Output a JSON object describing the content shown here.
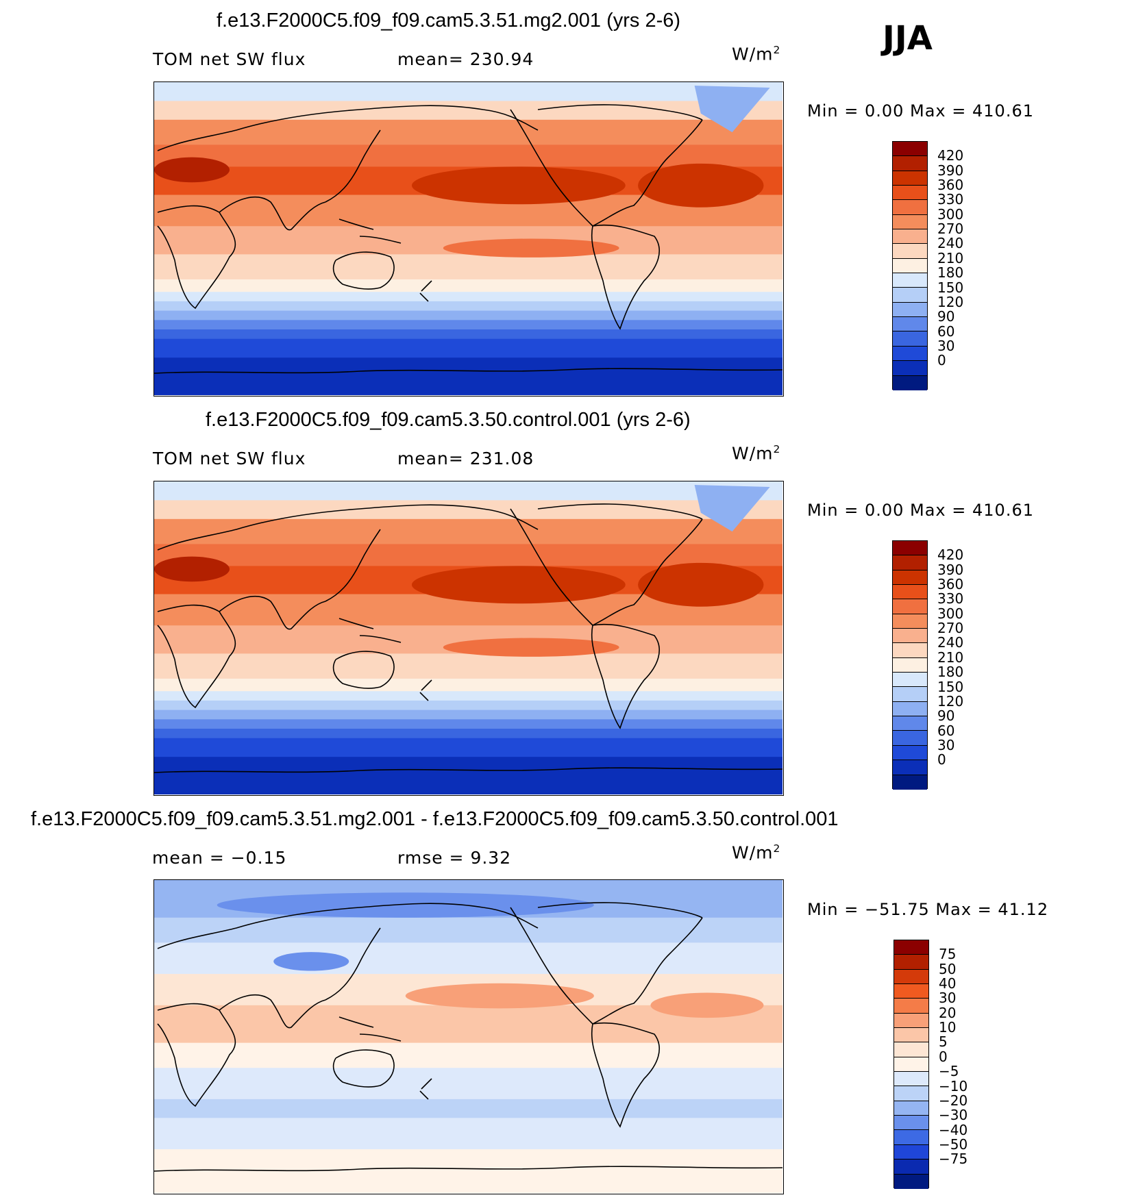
{
  "season": "JJA",
  "units_main": "W/m",
  "units_exp": "2",
  "panels": [
    {
      "title": "f.e13.F2000C5.f09_f09.cam5.3.51.mg2.001 (yrs 2-6)",
      "left_label": "TOM net SW flux",
      "mid_label": "mean= 230.94",
      "minmax": "Min =    0.00 Max = 410.61",
      "colorbar": {
        "labels": [
          "420",
          "390",
          "360",
          "330",
          "300",
          "270",
          "240",
          "210",
          "180",
          "150",
          "120",
          "90",
          "60",
          "30",
          "0"
        ],
        "colors": [
          "#8b0000",
          "#b22000",
          "#cc3300",
          "#e8501a",
          "#f07040",
          "#f48d5c",
          "#f9b08e",
          "#fcd8c0",
          "#fdf0e2",
          "#d8e8fb",
          "#b5cff7",
          "#8eb0f2",
          "#6088ea",
          "#3a66e0",
          "#1f4ad8",
          "#0b2fb8",
          "#001a80"
        ]
      },
      "field": "absolute"
    },
    {
      "title": "f.e13.F2000C5.f09_f09.cam5.3.50.control.001 (yrs 2-6)",
      "left_label": "TOM net SW flux",
      "mid_label": "mean= 231.08",
      "minmax": "Min =    0.00 Max = 410.61",
      "colorbar": {
        "labels": [
          "420",
          "390",
          "360",
          "330",
          "300",
          "270",
          "240",
          "210",
          "180",
          "150",
          "120",
          "90",
          "60",
          "30",
          "0"
        ],
        "colors": [
          "#8b0000",
          "#b22000",
          "#cc3300",
          "#e8501a",
          "#f07040",
          "#f48d5c",
          "#f9b08e",
          "#fcd8c0",
          "#fdf0e2",
          "#d8e8fb",
          "#b5cff7",
          "#8eb0f2",
          "#6088ea",
          "#3a66e0",
          "#1f4ad8",
          "#0b2fb8",
          "#001a80"
        ]
      },
      "field": "absolute"
    },
    {
      "title": "f.e13.F2000C5.f09_f09.cam5.3.51.mg2.001 - f.e13.F2000C5.f09_f09.cam5.3.50.control.001",
      "left_label": "mean =   −0.15",
      "mid_label": "rmse =    9.32",
      "minmax": "Min = −51.75 Max =  41.12",
      "colorbar": {
        "labels": [
          "75",
          "50",
          "40",
          "30",
          "20",
          "10",
          "5",
          "0",
          "−5",
          "−10",
          "−20",
          "−30",
          "−40",
          "−50",
          "−75"
        ],
        "colors": [
          "#8b0000",
          "#b22000",
          "#d43a0a",
          "#f05a20",
          "#f47c48",
          "#f8a078",
          "#fbc6a8",
          "#fde6d4",
          "#fff3e8",
          "#dde9fb",
          "#bcd3f7",
          "#95b5f2",
          "#6a90ec",
          "#3d6ae4",
          "#1f46d8",
          "#0a2ab0",
          "#001a80"
        ]
      },
      "field": "difference"
    }
  ]
}
